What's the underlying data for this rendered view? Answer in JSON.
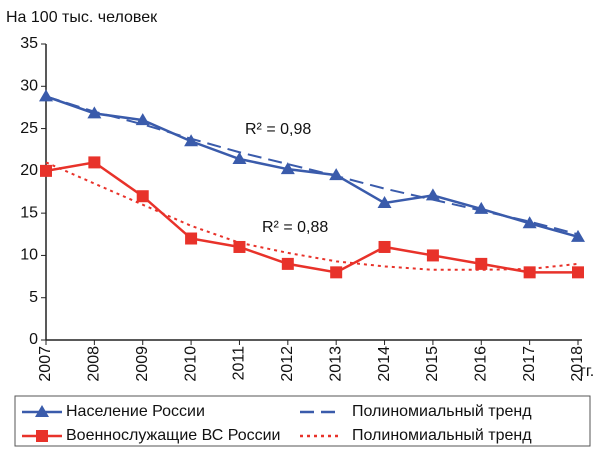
{
  "chart_data": {
    "type": "line",
    "y_label": "На 100 тыс. человек",
    "x_unit": "гг.",
    "categories": [
      "2007",
      "2008",
      "2009",
      "2010",
      "2011",
      "2012",
      "2013",
      "2014",
      "2015",
      "2016",
      "2017",
      "2018"
    ],
    "series": [
      {
        "name": "Население России",
        "color": "#3a5bab",
        "style": "solid",
        "marker": "triangle",
        "values": [
          28.8,
          26.8,
          26.0,
          23.5,
          21.4,
          20.2,
          19.5,
          16.2,
          17.1,
          15.5,
          13.8,
          12.2
        ]
      },
      {
        "name": "Полиномиальный тренд",
        "color": "#3a5bab",
        "style": "dashed",
        "marker": "none",
        "values": [
          28.8,
          27.0,
          25.5,
          23.8,
          22.2,
          20.8,
          19.4,
          17.9,
          16.6,
          15.3,
          14.0,
          12.5
        ]
      },
      {
        "name": "Военнослужащие ВС России",
        "color": "#e8322a",
        "style": "solid",
        "marker": "square",
        "values": [
          20,
          21,
          17,
          12,
          11,
          9,
          8,
          11,
          10,
          9,
          8,
          8
        ]
      },
      {
        "name": "Полиномиальный тренд",
        "color": "#e8322a",
        "style": "dotted",
        "marker": "none",
        "values": [
          21,
          18.5,
          16,
          13.5,
          11.5,
          10.3,
          9.3,
          8.7,
          8.3,
          8.3,
          8.4,
          9.0
        ]
      }
    ],
    "annotations": [
      "R² = 0,98",
      "R² = 0,88"
    ],
    "ylim": [
      0,
      35
    ],
    "yticks": [
      0,
      5,
      10,
      15,
      20,
      25,
      30,
      35
    ],
    "grid": false
  }
}
